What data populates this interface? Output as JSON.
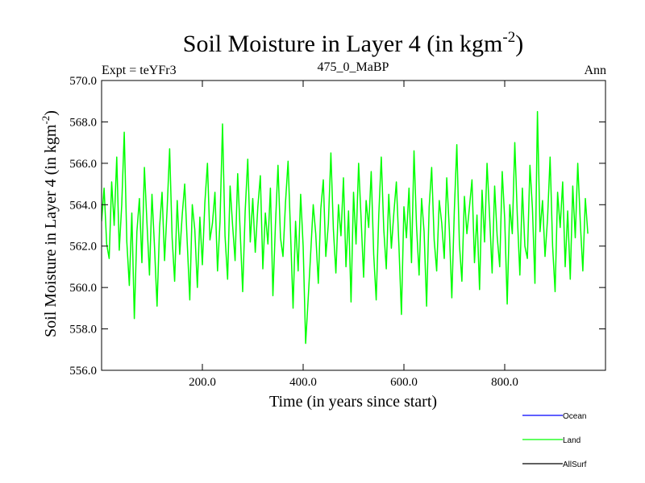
{
  "chart_data": {
    "type": "line",
    "title_main": "Soil Moisture in Layer 4 (in kgm",
    "title_sup": "-2",
    "title_close": ")",
    "subtitle_left": "Expt = teYFr3",
    "subtitle_center": "475_0_MaBP",
    "subtitle_right": "Ann",
    "xlabel": "Time (in years since start)",
    "ylabel_main": "Soil Moisture in Layer 4 (in kgm",
    "ylabel_sup": "-2",
    "ylabel_close": ")",
    "xlim": [
      0,
      1000
    ],
    "ylim": [
      556,
      570
    ],
    "xticks": [
      200,
      400,
      600,
      800
    ],
    "xtick_labels": [
      "200.0",
      "400.0",
      "600.0",
      "800.0"
    ],
    "yticks": [
      556,
      558,
      560,
      562,
      564,
      566,
      568,
      570
    ],
    "ytick_labels": [
      "556.0",
      "558.0",
      "560.0",
      "562.0",
      "564.0",
      "566.0",
      "568.0",
      "570.0"
    ],
    "series": [
      {
        "name": "Land",
        "color": "#00ff00",
        "x_start": 0,
        "x_step": 5,
        "values": [
          563.2,
          564.8,
          562.1,
          561.4,
          565.1,
          563.0,
          566.3,
          561.8,
          564.0,
          567.5,
          562.2,
          560.1,
          563.6,
          558.5,
          562.7,
          564.3,
          561.2,
          565.8,
          563.1,
          560.6,
          564.5,
          562.0,
          559.1,
          562.9,
          564.6,
          561.3,
          563.8,
          566.7,
          562.4,
          560.3,
          564.2,
          561.6,
          563.5,
          565.0,
          562.1,
          559.4,
          564.0,
          562.8,
          560.0,
          563.4,
          561.1,
          564.1,
          566.0,
          562.3,
          563.1,
          564.6,
          560.8,
          563.2,
          567.9,
          562.5,
          560.4,
          564.9,
          563.0,
          561.3,
          565.5,
          562.7,
          559.8,
          563.7,
          566.2,
          562.2,
          564.3,
          561.7,
          563.9,
          565.4,
          560.9,
          563.6,
          562.1,
          564.8,
          559.6,
          563.0,
          565.9,
          562.4,
          561.5,
          564.1,
          566.1,
          562.6,
          559.0,
          563.2,
          560.8,
          564.5,
          562.0,
          557.3,
          559.5,
          561.7,
          564.0,
          562.6,
          560.2,
          563.8,
          565.2,
          561.5,
          563.1,
          566.5,
          562.8,
          560.7,
          564.0,
          562.5,
          565.3,
          561.0,
          563.7,
          559.3,
          564.6,
          562.1,
          566.0,
          563.3,
          560.5,
          564.2,
          562.9,
          565.6,
          561.6,
          559.4,
          563.5,
          566.3,
          562.8,
          560.9,
          564.5,
          561.9,
          563.6,
          565.1,
          562.0,
          558.7,
          563.9,
          562.4,
          564.8,
          561.2,
          566.6,
          563.0,
          560.6,
          564.3,
          562.7,
          559.1,
          563.9,
          565.8,
          562.3,
          560.8,
          564.2,
          563.1,
          561.4,
          565.3,
          562.8,
          559.5,
          563.7,
          566.9,
          562.1,
          560.3,
          564.4,
          562.6,
          563.9,
          565.2,
          561.2,
          563.5,
          559.9,
          564.7,
          562.2,
          566.0,
          563.4,
          560.7,
          564.9,
          562.5,
          561.0,
          565.6,
          563.3,
          559.2,
          564.0,
          562.6,
          567.0,
          563.5,
          560.6,
          564.8,
          562.0,
          561.4,
          565.9,
          563.8,
          560.2,
          568.5,
          562.7,
          564.2,
          561.5,
          563.3,
          566.3,
          562.0,
          559.8,
          564.6,
          562.9,
          565.1,
          561.0,
          563.7,
          560.4,
          564.9,
          562.4,
          566.0,
          563.1,
          560.8,
          564.3,
          562.6
        ]
      }
    ],
    "legend": [
      {
        "label": "Ocean",
        "color": "#0000ff"
      },
      {
        "label": "Land",
        "color": "#00ff00"
      },
      {
        "label": "AllSurf",
        "color": "#000000"
      }
    ]
  }
}
